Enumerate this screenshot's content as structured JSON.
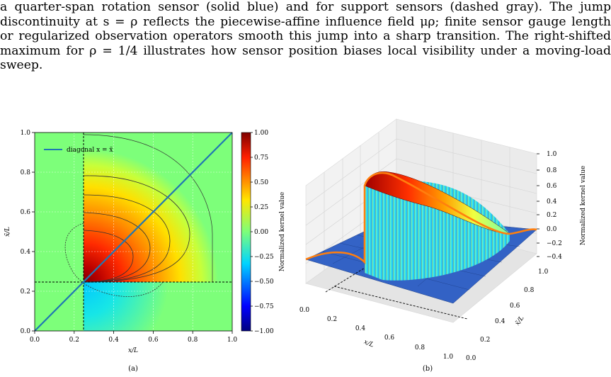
{
  "caption": {
    "lines": [
      "a quarter-span rotation sensor (solid blue) and for support sensors (dashed gray). The jump",
      "discontinuity at s = ρ reflects the piecewise-affine influence field μρ; finite sensor gauge length",
      "or regularized observation operators smooth this jump into a sharp transition. The right-shifted",
      "maximum for ρ = 1/4 illustrates how sensor position biases local visibility under a moving-load",
      "sweep."
    ]
  },
  "subfig_a": {
    "label": "(a)",
    "legend": "diagonal x = x̃",
    "xlabel": "x/L",
    "ylabel": "x̃/L",
    "xticks": [
      "0.0",
      "0.2",
      "0.4",
      "0.6",
      "0.8",
      "1.0"
    ],
    "yticks": [
      "0.0",
      "0.2",
      "0.4",
      "0.6",
      "0.8",
      "1.0"
    ],
    "colorbar_label": "Normalized kernel value",
    "colorbar_ticks": [
      "1.00",
      "0.75",
      "0.50",
      "0.25",
      "0.00",
      "−0.25",
      "−0.50",
      "−0.75",
      "−1.00"
    ]
  },
  "subfig_b": {
    "label": "(b)",
    "xlabel": "x/L",
    "ylabel": "x̃/L",
    "zlabel": "Normalized kernel value",
    "xticks": [
      "0.0",
      "0.2",
      "0.4",
      "0.6",
      "0.8",
      "1.0"
    ],
    "yticks": [
      "0.0",
      "0.2",
      "0.4",
      "0.6",
      "0.8",
      "1.0"
    ],
    "zticks": [
      "1.0",
      "0.8",
      "0.6",
      "0.4",
      "0.2",
      "0.0",
      "−0.2",
      "−0.4"
    ]
  },
  "colors": {
    "diagonal": "#1f77b4",
    "edge": "#ff7f0e"
  }
}
